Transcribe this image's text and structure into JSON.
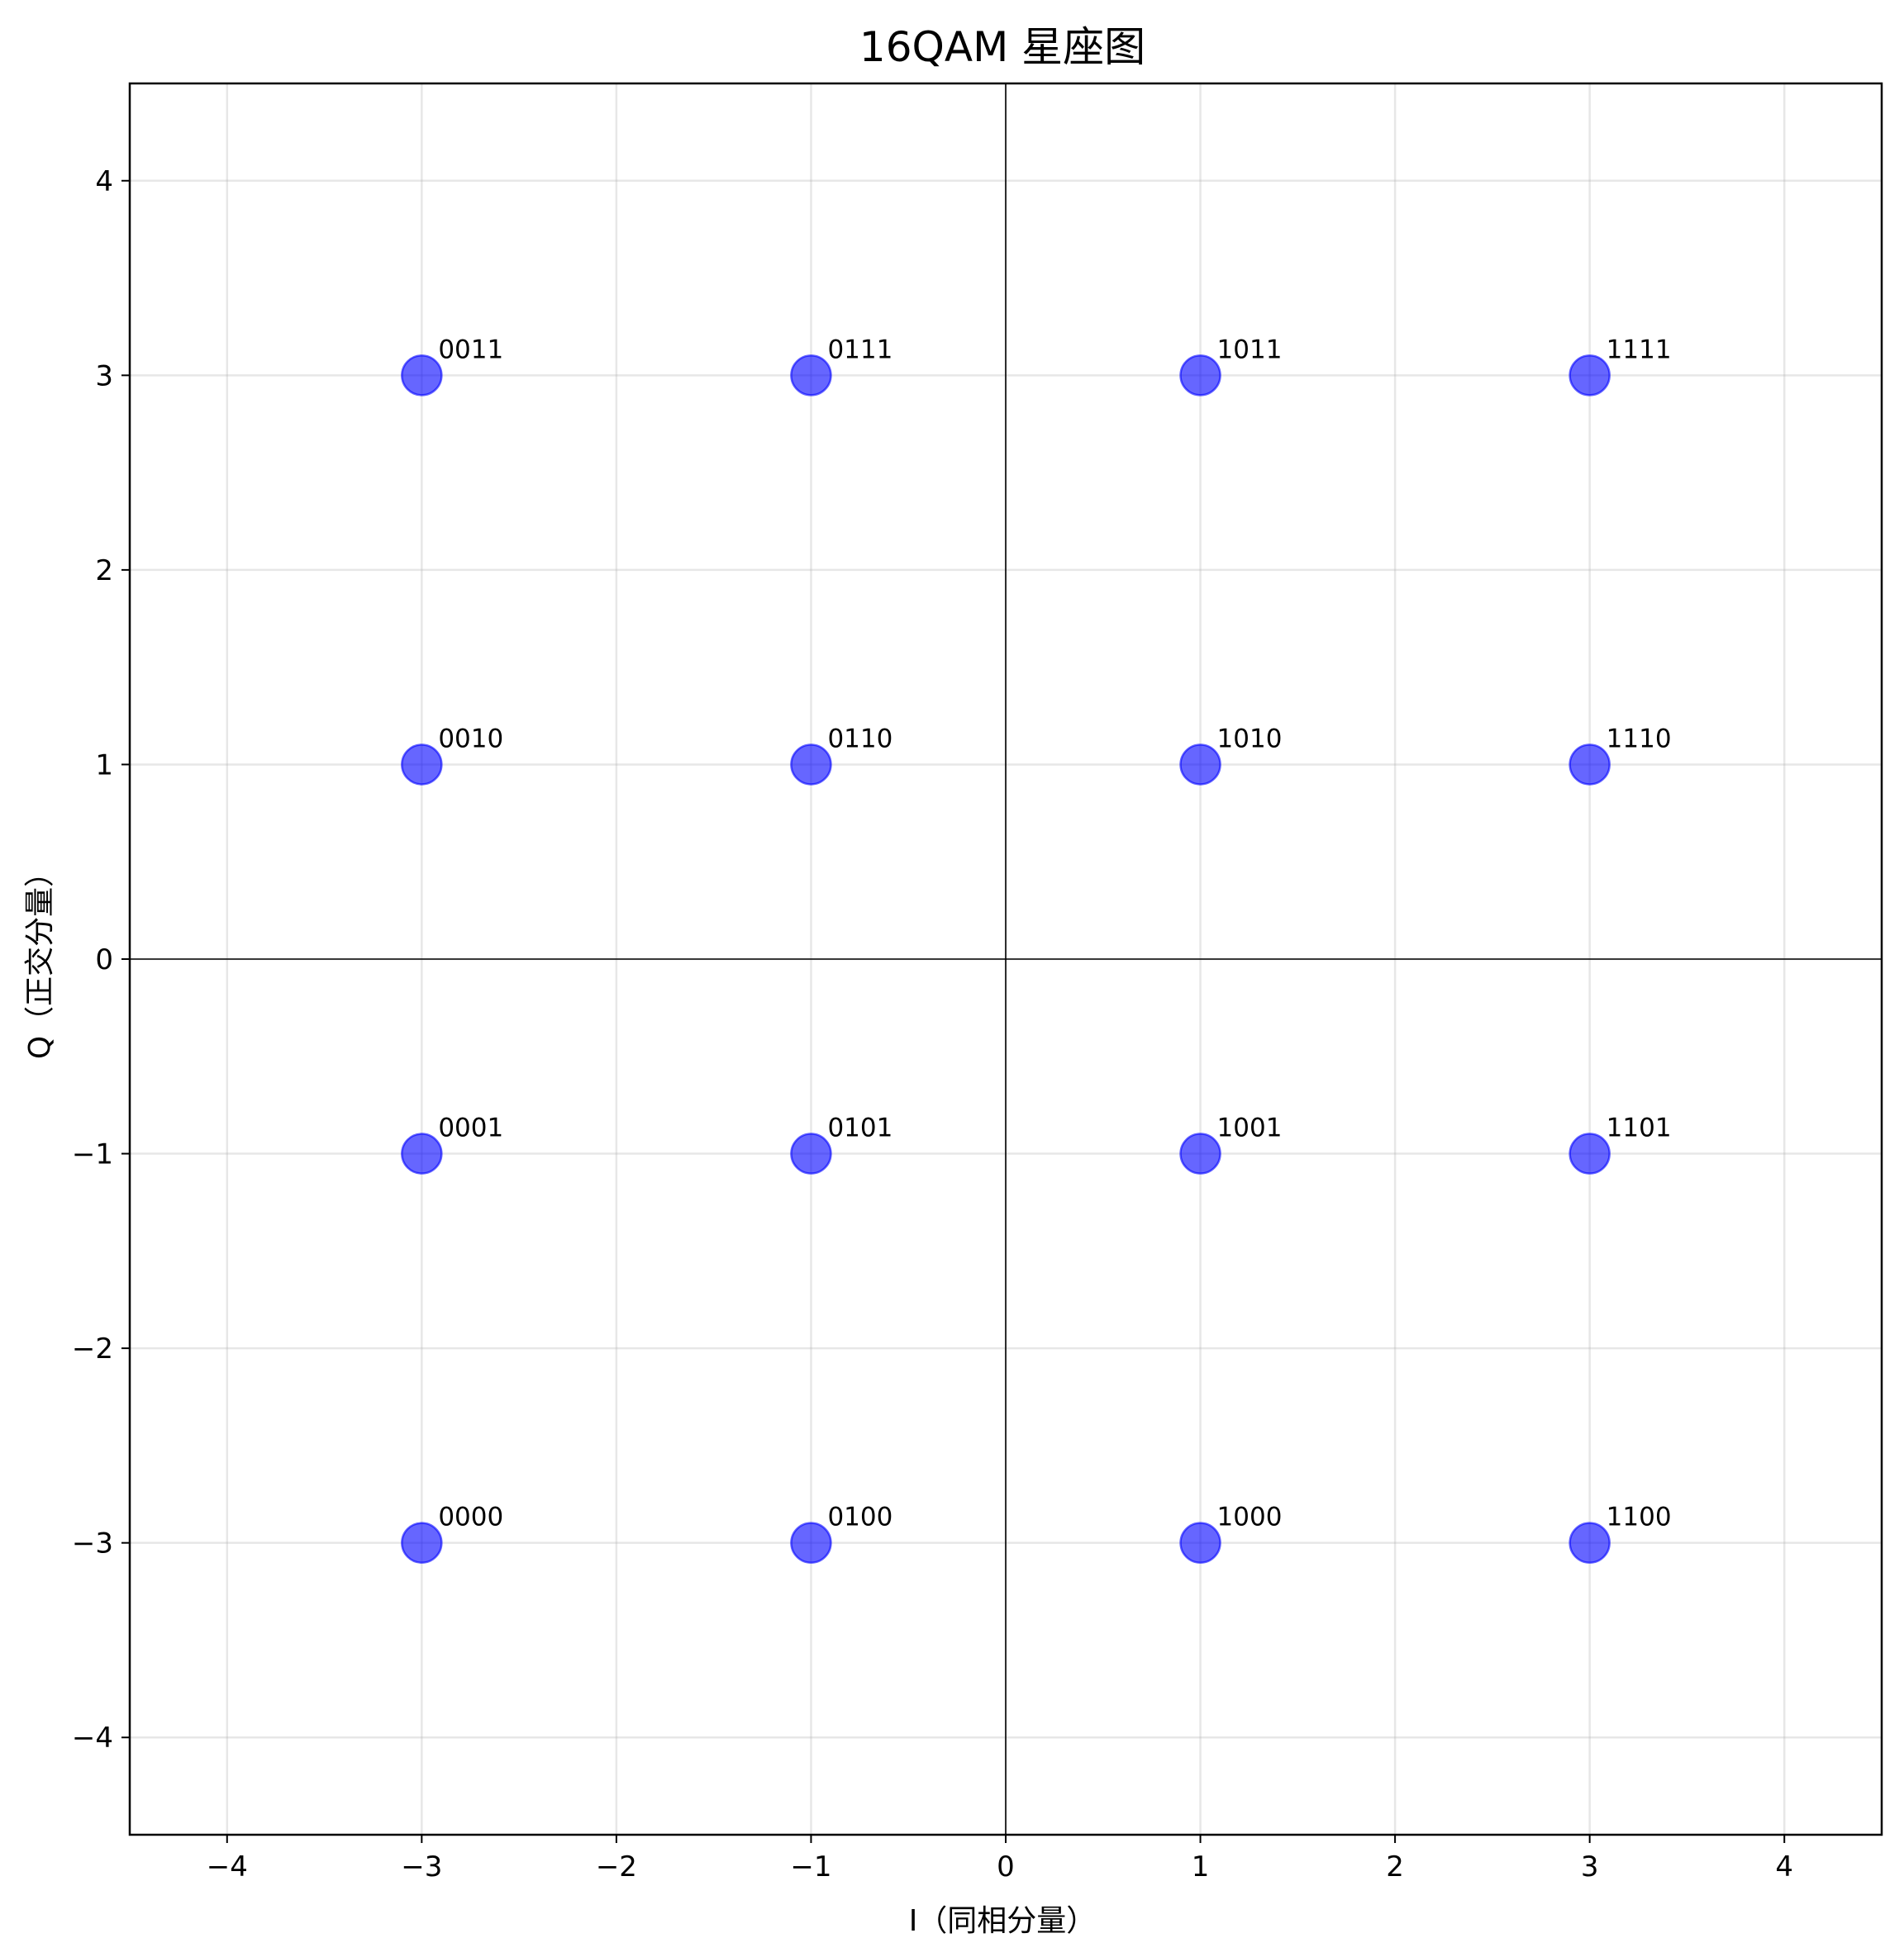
{
  "chart_data": {
    "type": "scatter",
    "title": "16QAM 星座图",
    "xlabel": "I（同相分量）",
    "ylabel": "Q（正交分量）",
    "xlim": [
      -4.5,
      4.5
    ],
    "ylim": [
      -4.5,
      4.5
    ],
    "xticks": [
      -4,
      -3,
      -2,
      -1,
      0,
      1,
      2,
      3,
      4
    ],
    "yticks": [
      -4,
      -3,
      -2,
      -1,
      0,
      1,
      2,
      3,
      4
    ],
    "xtick_labels": [
      "−4",
      "−3",
      "−2",
      "−1",
      "0",
      "1",
      "2",
      "3",
      "4"
    ],
    "ytick_labels": [
      "−4",
      "−3",
      "−2",
      "−1",
      "0",
      "1",
      "2",
      "3",
      "4"
    ],
    "grid": true,
    "marker_color": "#0000ff",
    "marker_alpha": 0.6,
    "points": [
      {
        "x": -3,
        "y": 3,
        "label": "0011"
      },
      {
        "x": -1,
        "y": 3,
        "label": "0111"
      },
      {
        "x": 1,
        "y": 3,
        "label": "1011"
      },
      {
        "x": 3,
        "y": 3,
        "label": "1111"
      },
      {
        "x": -3,
        "y": 1,
        "label": "0010"
      },
      {
        "x": -1,
        "y": 1,
        "label": "0110"
      },
      {
        "x": 1,
        "y": 1,
        "label": "1010"
      },
      {
        "x": 3,
        "y": 1,
        "label": "1110"
      },
      {
        "x": -3,
        "y": -1,
        "label": "0001"
      },
      {
        "x": -1,
        "y": -1,
        "label": "0101"
      },
      {
        "x": 1,
        "y": -1,
        "label": "1001"
      },
      {
        "x": 3,
        "y": -1,
        "label": "1101"
      },
      {
        "x": -3,
        "y": -3,
        "label": "0000"
      },
      {
        "x": -1,
        "y": -3,
        "label": "0100"
      },
      {
        "x": 1,
        "y": -3,
        "label": "1000"
      },
      {
        "x": 3,
        "y": -3,
        "label": "1100"
      }
    ]
  }
}
